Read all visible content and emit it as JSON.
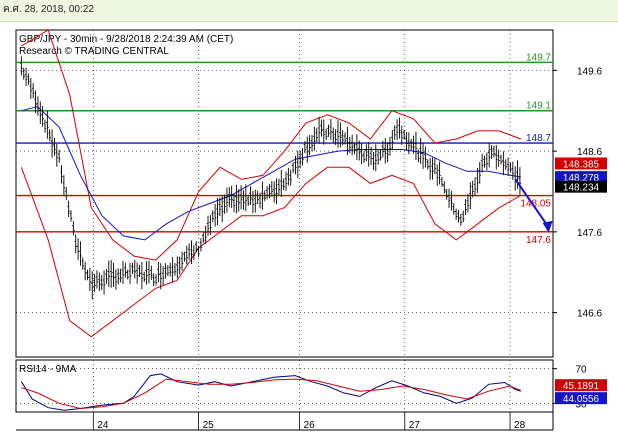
{
  "header": {
    "date_label": "ค.ศ. 28, 2018, 00:22"
  },
  "chart_data": [
    {
      "type": "candlestick",
      "title": "GBP/JPY - 30min - 9/28/2018 2:24:39 AM (CET)",
      "subtitle": "Research © TRADING CENTRAL",
      "y_ticks": [
        149.6,
        148.6,
        147.6,
        146.6
      ],
      "ylim": [
        146.05,
        150.1
      ],
      "x_ticks": [
        "24",
        "25",
        "26",
        "27",
        "28"
      ],
      "levels": [
        {
          "value": 149.7,
          "label": "149.7",
          "color": "#1e9b1e"
        },
        {
          "value": 149.1,
          "label": "149.1",
          "color": "#1e9b1e"
        },
        {
          "value": 148.7,
          "label": "148.7",
          "color": "#1414cc"
        },
        {
          "value": 148.05,
          "label": "148.05",
          "color": "#d40000"
        },
        {
          "value": 147.6,
          "label": "147.6",
          "color": "#d40000"
        }
      ],
      "price_tags": [
        {
          "value": 148.385,
          "label": "148.385",
          "color": "#d40000"
        },
        {
          "value": 148.278,
          "label": "148.278",
          "color": "#1414cc"
        },
        {
          "value": 148.234,
          "label": "148.234",
          "color": "#000000"
        }
      ],
      "price_path": [
        [
          0.5,
          149.65
        ],
        [
          2,
          149.2
        ],
        [
          4,
          148.5
        ],
        [
          5.5,
          147.5
        ],
        [
          7,
          146.95
        ],
        [
          9,
          147.05
        ],
        [
          11,
          147.1
        ],
        [
          13,
          147.05
        ],
        [
          15,
          147.2
        ],
        [
          17,
          147.4
        ],
        [
          18.5,
          147.8
        ],
        [
          20,
          148.0
        ],
        [
          22,
          148.0
        ],
        [
          24,
          148.1
        ],
        [
          25.5,
          148.3
        ],
        [
          27,
          148.65
        ],
        [
          28.5,
          148.85
        ],
        [
          30,
          148.8
        ],
        [
          31.5,
          148.65
        ],
        [
          33,
          148.5
        ],
        [
          34.5,
          148.6
        ],
        [
          35.5,
          148.9
        ],
        [
          36.5,
          148.75
        ],
        [
          38,
          148.5
        ],
        [
          39.5,
          148.3
        ],
        [
          40.5,
          147.95
        ],
        [
          41.5,
          147.75
        ],
        [
          42.5,
          148.1
        ],
        [
          43.5,
          148.45
        ],
        [
          44.5,
          148.6
        ],
        [
          45.5,
          148.45
        ],
        [
          46.5,
          148.3
        ],
        [
          47,
          148.25
        ]
      ],
      "ma_path": [
        [
          0.5,
          149.1
        ],
        [
          2,
          149.15
        ],
        [
          4,
          148.9
        ],
        [
          6,
          148.3
        ],
        [
          8,
          147.8
        ],
        [
          10,
          147.55
        ],
        [
          12,
          147.5
        ],
        [
          14,
          147.7
        ],
        [
          16,
          147.85
        ],
        [
          18,
          147.95
        ],
        [
          20,
          148.05
        ],
        [
          22,
          148.2
        ],
        [
          24,
          148.35
        ],
        [
          26,
          148.5
        ],
        [
          28,
          148.55
        ],
        [
          30,
          148.6
        ],
        [
          32,
          148.62
        ],
        [
          34,
          148.62
        ],
        [
          36,
          148.62
        ],
        [
          38,
          148.58
        ],
        [
          40,
          148.45
        ],
        [
          42,
          148.35
        ],
        [
          44,
          148.35
        ],
        [
          46,
          148.3
        ],
        [
          47,
          148.28
        ]
      ],
      "bb_upper": [
        [
          0.5,
          149.9
        ],
        [
          3,
          150.1
        ],
        [
          5,
          149.3
        ],
        [
          7,
          147.9
        ],
        [
          9,
          147.5
        ],
        [
          11,
          147.3
        ],
        [
          13,
          147.25
        ],
        [
          15,
          147.5
        ],
        [
          17,
          148.1
        ],
        [
          19,
          148.4
        ],
        [
          21,
          148.25
        ],
        [
          23,
          148.3
        ],
        [
          25,
          148.6
        ],
        [
          27,
          148.95
        ],
        [
          29,
          149.05
        ],
        [
          31,
          148.95
        ],
        [
          33,
          148.75
        ],
        [
          35,
          149.1
        ],
        [
          37,
          149.0
        ],
        [
          39,
          148.7
        ],
        [
          41,
          148.75
        ],
        [
          43,
          148.85
        ],
        [
          45,
          148.85
        ],
        [
          47,
          148.75
        ]
      ],
      "bb_lower": [
        [
          0.5,
          148.4
        ],
        [
          3,
          147.5
        ],
        [
          5,
          146.5
        ],
        [
          7,
          146.3
        ],
        [
          9,
          146.5
        ],
        [
          11,
          146.7
        ],
        [
          13,
          146.9
        ],
        [
          15,
          147.0
        ],
        [
          17,
          147.4
        ],
        [
          19,
          147.6
        ],
        [
          21,
          147.8
        ],
        [
          23,
          147.8
        ],
        [
          25,
          147.9
        ],
        [
          27,
          148.2
        ],
        [
          29,
          148.4
        ],
        [
          31,
          148.4
        ],
        [
          33,
          148.2
        ],
        [
          35,
          148.3
        ],
        [
          37,
          148.2
        ],
        [
          39,
          147.7
        ],
        [
          41,
          147.5
        ],
        [
          43,
          147.7
        ],
        [
          45,
          147.9
        ],
        [
          47,
          148.05
        ]
      ],
      "forecast_arrow": {
        "from": [
          46.5,
          148.25
        ],
        "to": [
          49.5,
          147.6
        ]
      },
      "x_range": [
        0,
        50
      ]
    },
    {
      "type": "line",
      "title": "RSI14 - 9MA",
      "y_ticks": [
        70,
        30
      ],
      "ylim": [
        20,
        80
      ],
      "value_tags": [
        {
          "value": 45.1891,
          "label": "45.1891",
          "color": "#d40000"
        },
        {
          "value": 44.0556,
          "label": "44.0556",
          "color": "#1414cc"
        }
      ],
      "series": [
        {
          "color": "#000080",
          "values": [
            [
              0.5,
              55
            ],
            [
              1.5,
              35
            ],
            [
              3,
              25
            ],
            [
              4.5,
              22
            ],
            [
              6,
              24
            ],
            [
              8,
              28
            ],
            [
              10,
              30
            ],
            [
              11,
              38
            ],
            [
              12.5,
              62
            ],
            [
              13.5,
              64
            ],
            [
              15,
              55
            ],
            [
              17,
              51
            ],
            [
              18.5,
              55
            ],
            [
              20,
              50
            ],
            [
              22,
              55
            ],
            [
              24,
              60
            ],
            [
              26,
              62
            ],
            [
              27.5,
              55
            ],
            [
              29,
              50
            ],
            [
              30.5,
              42
            ],
            [
              32,
              38
            ],
            [
              33.5,
              48
            ],
            [
              35,
              56
            ],
            [
              36.5,
              50
            ],
            [
              38,
              42
            ],
            [
              39.5,
              38
            ],
            [
              41,
              30
            ],
            [
              42.5,
              36
            ],
            [
              44,
              52
            ],
            [
              45.5,
              54
            ],
            [
              46.5,
              46
            ],
            [
              47,
              44
            ]
          ]
        },
        {
          "color": "#d40000",
          "values": [
            [
              0.5,
              48
            ],
            [
              2,
              42
            ],
            [
              4,
              30
            ],
            [
              6,
              24
            ],
            [
              8,
              26
            ],
            [
              10,
              30
            ],
            [
              12,
              42
            ],
            [
              14,
              58
            ],
            [
              16,
              55
            ],
            [
              18,
              52
            ],
            [
              20,
              52
            ],
            [
              22,
              54
            ],
            [
              24,
              57
            ],
            [
              26,
              58
            ],
            [
              28,
              56
            ],
            [
              30,
              50
            ],
            [
              32,
              44
            ],
            [
              34,
              46
            ],
            [
              36,
              50
            ],
            [
              38,
              46
            ],
            [
              40,
              40
            ],
            [
              42,
              35
            ],
            [
              44,
              44
            ],
            [
              46,
              50
            ],
            [
              47,
              45
            ]
          ]
        }
      ],
      "x_range": [
        0,
        50
      ]
    }
  ]
}
